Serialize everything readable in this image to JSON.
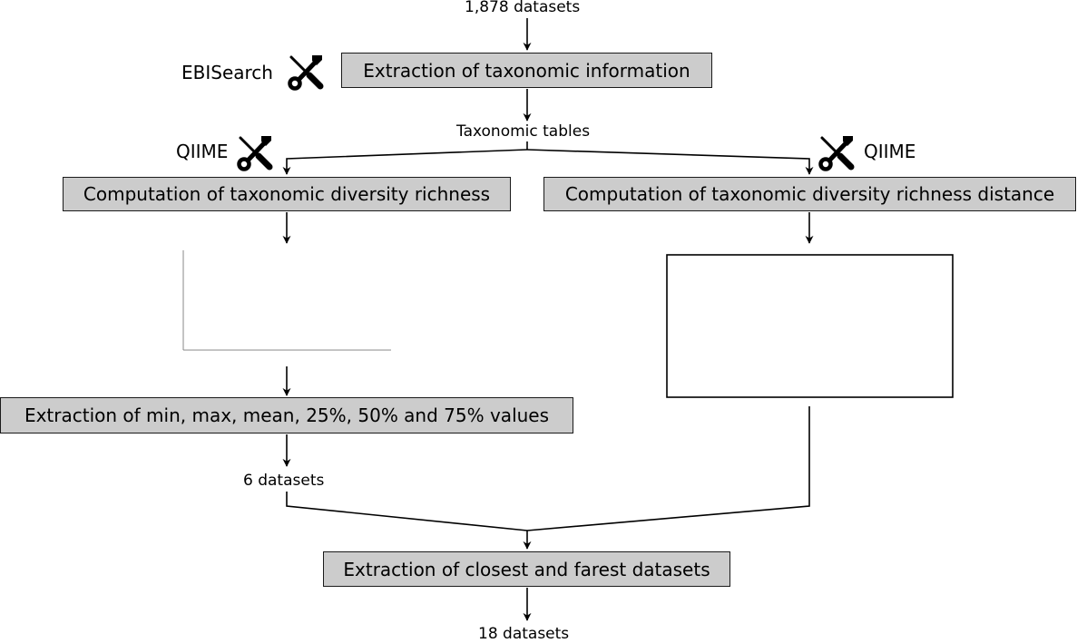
{
  "flow": {
    "input_label": "1,878 datasets",
    "extract_taxo": "Extraction of taxonomic information",
    "tool_ebi": "EBISearch",
    "tax_tables": "Taxonomic tables",
    "tool_qiime_left": "QIIME",
    "tool_qiime_right": "QIIME",
    "richness": "Computation of taxonomic diversity richness",
    "distance": "Computation of taxonomic diversity richness distance",
    "extract_stats": "Extraction of min, max, mean, 25%, 50% and 75% values",
    "six_datasets": "6 datasets",
    "extract_closest": "Extraction of closest and farest datasets",
    "output_label": "18 datasets"
  },
  "icons": {
    "tool_icon": "wrench-screwdriver-icon"
  }
}
